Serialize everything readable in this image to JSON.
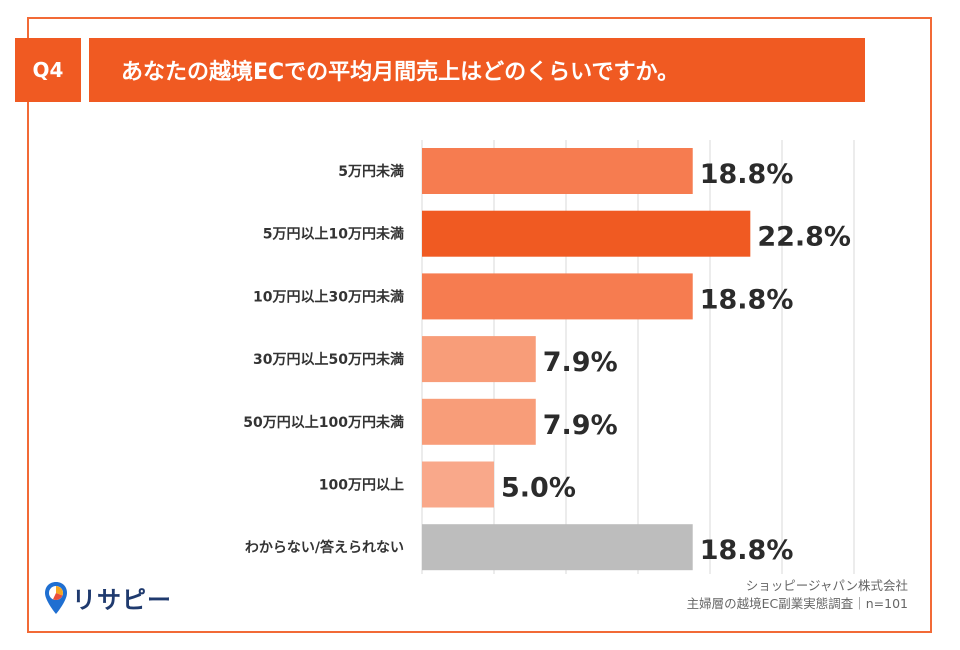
{
  "header": {
    "question_number": "Q4",
    "question_text": "あなたの越境ECでの平均月間売上はどのくらいですか。"
  },
  "chart_data": {
    "type": "bar",
    "orientation": "horizontal",
    "categories": [
      "5万円未満",
      "5万円以上10万円未満",
      "10万円以上30万円未満",
      "30万円以上50万円未満",
      "50万円以上100万円未満",
      "100万円以上",
      "わからない/答えられない"
    ],
    "values": [
      18.8,
      22.8,
      18.8,
      7.9,
      7.9,
      5.0,
      18.8
    ],
    "value_labels": [
      "18.8%",
      "22.8%",
      "18.8%",
      "7.9%",
      "7.9%",
      "5.0%",
      "18.8%"
    ],
    "bar_colors": [
      "#f67c50",
      "#f05a22",
      "#f67c50",
      "#f89d79",
      "#f89d79",
      "#f9a88a",
      "#bdbdbd"
    ],
    "xlim": [
      0,
      30
    ],
    "grid": true,
    "title": "",
    "xlabel": "",
    "ylabel": ""
  },
  "logo": {
    "text": "リサピー",
    "icon": "pin-pie-icon"
  },
  "source": {
    "line1": "ショッピージャパン株式会社",
    "line2": "主婦層の越境EC副業実態調査｜n=101"
  }
}
